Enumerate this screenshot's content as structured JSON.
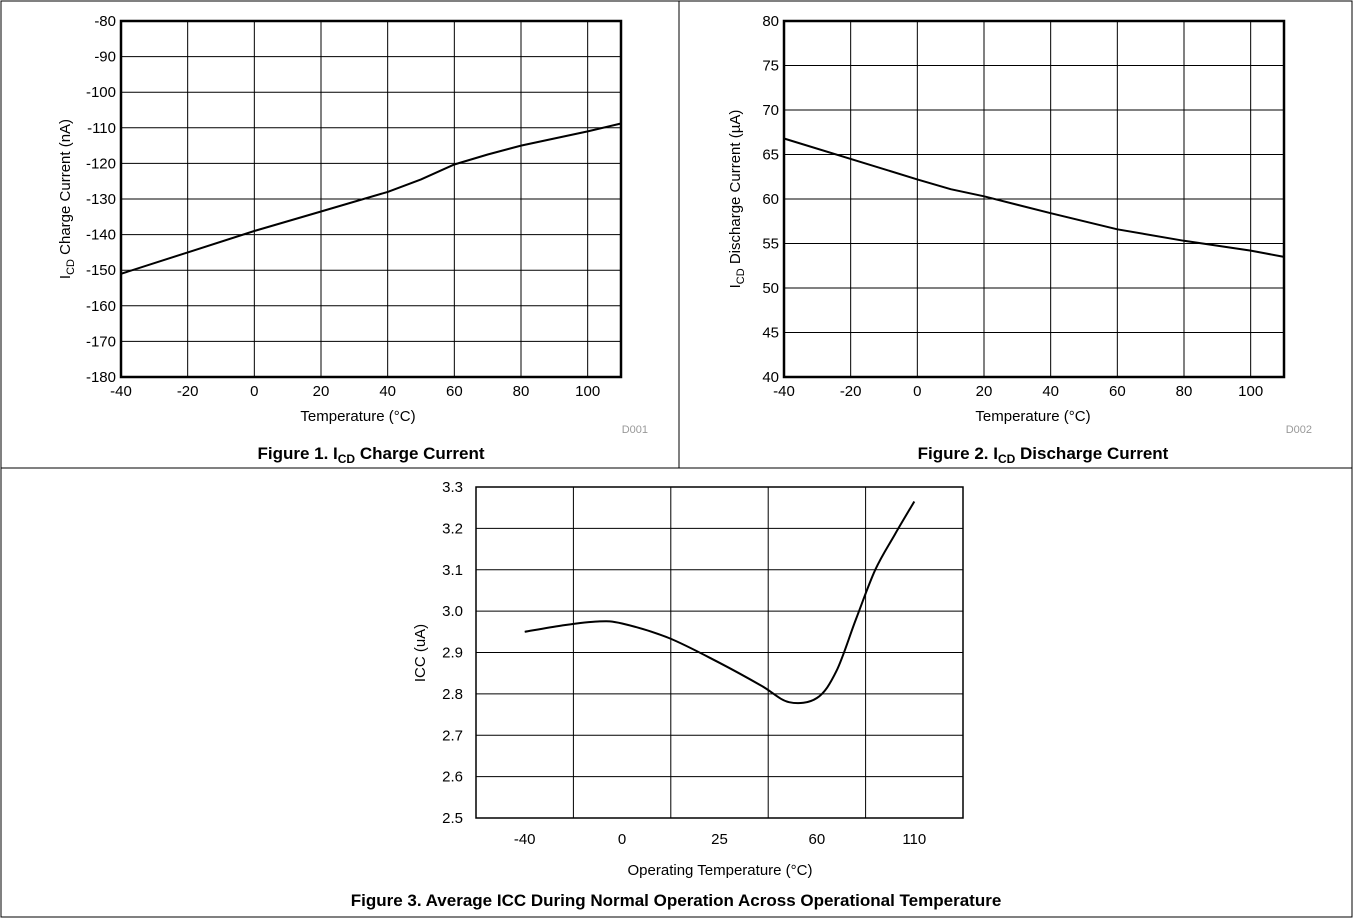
{
  "chart_data": [
    {
      "type": "line",
      "caption_prefix": "Figure 1. I",
      "caption_sub": "CD",
      "caption_suffix": " Charge Current",
      "ylabel_main": "I",
      "ylabel_sub": "CD",
      "ylabel_rest": " Charge Current (nA)",
      "xlabel": "Temperature (°C)",
      "code": "D001",
      "xlim": [
        -40,
        110
      ],
      "ylim": [
        -180,
        -80
      ],
      "xticks": [
        -40,
        -20,
        0,
        20,
        40,
        60,
        80,
        100
      ],
      "yticks": [
        -180,
        -170,
        -160,
        -150,
        -140,
        -130,
        -120,
        -110,
        -100,
        -90,
        -80
      ],
      "grid_x": [
        -40,
        -20,
        0,
        20,
        40,
        60,
        80,
        100,
        110
      ],
      "grid": true,
      "series": [
        {
          "x": [
            -40,
            -20,
            0,
            20,
            40,
            50,
            60,
            70,
            80,
            90,
            100,
            110
          ],
          "y": [
            -151,
            -145,
            -139,
            -133.5,
            -128,
            -124.5,
            -120.3,
            -117.5,
            -115,
            -113,
            -111,
            -108.8
          ]
        }
      ]
    },
    {
      "type": "line",
      "caption_prefix": "Figure 2. I",
      "caption_sub": "CD",
      "caption_suffix": " Discharge Current",
      "ylabel_main": "I",
      "ylabel_sub": "CD",
      "ylabel_rest": " Discharge Current (µA)",
      "xlabel": "Temperature (°C)",
      "code": "D002",
      "xlim": [
        -40,
        110
      ],
      "ylim": [
        40,
        80
      ],
      "xticks": [
        -40,
        -20,
        0,
        20,
        40,
        60,
        80,
        100
      ],
      "yticks": [
        40,
        45,
        50,
        55,
        60,
        65,
        70,
        75,
        80
      ],
      "grid_x": [
        -40,
        -20,
        0,
        20,
        40,
        60,
        80,
        100,
        110
      ],
      "grid": true,
      "series": [
        {
          "x": [
            -40,
            -20,
            0,
            10,
            20,
            40,
            60,
            80,
            100,
            110
          ],
          "y": [
            66.8,
            64.5,
            62.2,
            61.1,
            60.3,
            58.4,
            56.6,
            55.3,
            54.2,
            53.5
          ]
        }
      ]
    },
    {
      "type": "line",
      "caption": "Figure 3. Average ICC During Normal Operation Across Operational Temperature",
      "ylabel": "ICC (uA)",
      "xlabel": "Operating Temperature (°C)",
      "categories": [
        "-40",
        "0",
        "25",
        "60",
        "110"
      ],
      "ylim": [
        2.5,
        3.3
      ],
      "yticks": [
        "2.5",
        "2.6",
        "2.7",
        "2.8",
        "2.9",
        "3.0",
        "3.1",
        "3.2",
        "3.3"
      ],
      "grid": true,
      "series": [
        {
          "x": [
            -40,
            -25,
            -10,
            0,
            12,
            25,
            40,
            50,
            60,
            70,
            80,
            90,
            100,
            110
          ],
          "y": [
            2.95,
            2.965,
            2.975,
            2.97,
            2.935,
            2.875,
            2.82,
            2.78,
            2.79,
            2.855,
            2.98,
            3.1,
            3.185,
            3.265
          ]
        }
      ]
    }
  ]
}
